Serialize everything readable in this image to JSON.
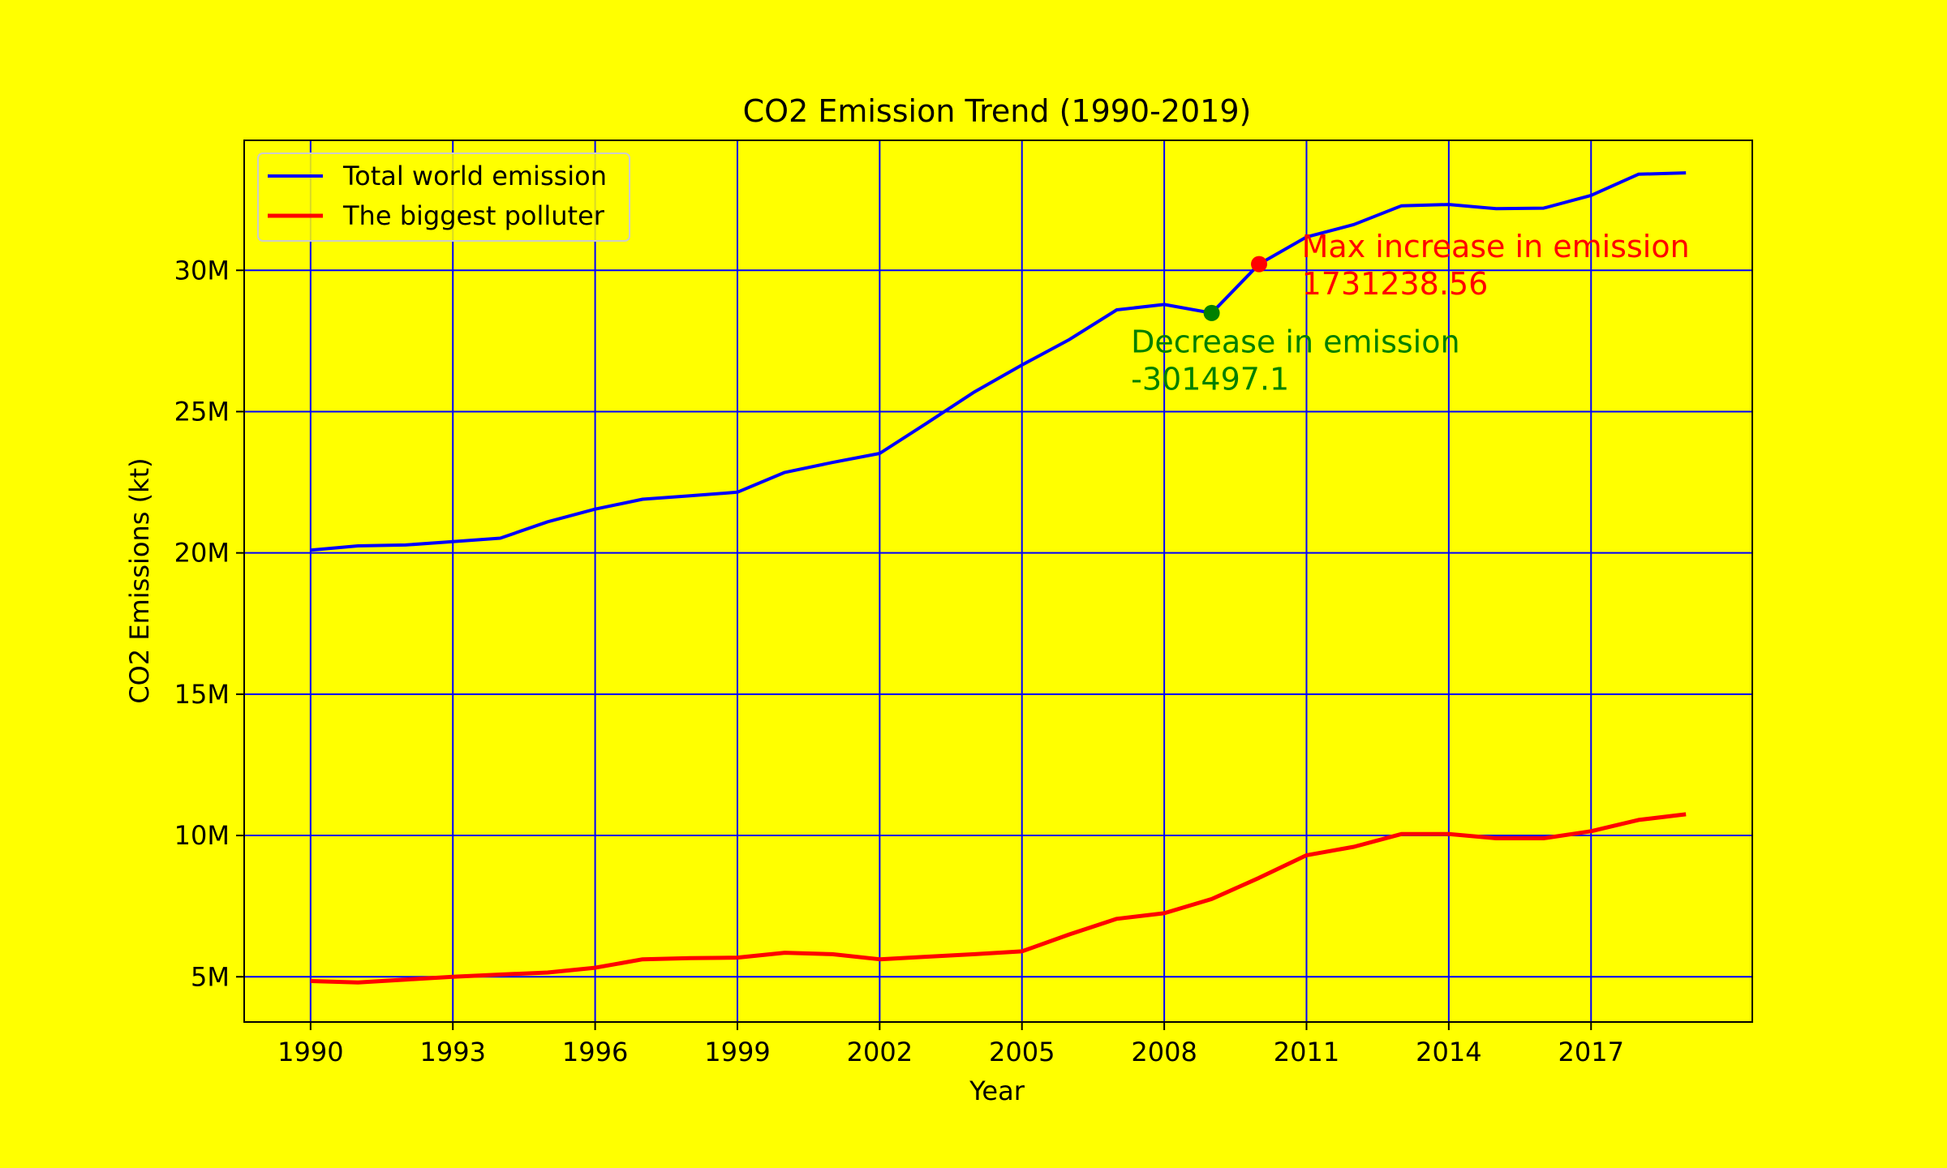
{
  "chart_data": {
    "type": "line",
    "title": "CO2 Emission Trend (1990-2019)",
    "xlabel": "Year",
    "ylabel": "CO2 Emissions (kt)",
    "xlim": [
      1988.6,
      2020.4
    ],
    "ylim": [
      3400000,
      34600000
    ],
    "grid": true,
    "grid_color": "#0000ff",
    "legend_position": "top-left",
    "x_ticks": [
      1990,
      1993,
      1996,
      1999,
      2002,
      2005,
      2008,
      2011,
      2014,
      2017
    ],
    "x_tick_labels": [
      "1990",
      "1993",
      "1996",
      "1999",
      "2002",
      "2005",
      "2008",
      "2011",
      "2014",
      "2017"
    ],
    "y_ticks": [
      5000000,
      10000000,
      15000000,
      20000000,
      25000000,
      30000000
    ],
    "y_tick_labels": [
      "5M",
      "10M",
      "15M",
      "20M",
      "25M",
      "30M"
    ],
    "x": [
      1990,
      1991,
      1992,
      1993,
      1994,
      1995,
      1996,
      1997,
      1998,
      1999,
      2000,
      2001,
      2002,
      2003,
      2004,
      2005,
      2006,
      2007,
      2008,
      2009,
      2010,
      2011,
      2012,
      2013,
      2014,
      2015,
      2016,
      2017,
      2018,
      2019
    ],
    "series": [
      {
        "name": "Total world emission",
        "color": "#0000ff",
        "values": [
          20100000,
          20250000,
          20280000,
          20400000,
          20520000,
          21100000,
          21550000,
          21900000,
          22020000,
          22150000,
          22850000,
          23200000,
          23520000,
          24600000,
          25700000,
          26650000,
          27550000,
          28600000,
          28790000,
          28490000,
          30220000,
          31180000,
          31620000,
          32280000,
          32330000,
          32180000,
          32200000,
          32650000,
          33400000,
          33450000
        ]
      },
      {
        "name": "The biggest polluter",
        "color": "#ff0000",
        "values": [
          4850000,
          4800000,
          4900000,
          5000000,
          5080000,
          5150000,
          5320000,
          5620000,
          5660000,
          5680000,
          5850000,
          5800000,
          5620000,
          5710000,
          5800000,
          5900000,
          6500000,
          7050000,
          7250000,
          7750000,
          8500000,
          9300000,
          9600000,
          10050000,
          10050000,
          9900000,
          9900000,
          10150000,
          10550000,
          10750000
        ]
      }
    ],
    "annotations": [
      {
        "label": "Max increase in emission",
        "value": "1731238.56",
        "point_x": 2010,
        "point_y": 30220000,
        "text_x": 2010.9,
        "text_y": 30460000,
        "color": "#ff0000"
      },
      {
        "label": "Decrease in emission",
        "value": "-301497.1",
        "point_x": 2009,
        "point_y": 28490000,
        "text_x": 2007.3,
        "text_y": 27100000,
        "marker_color": "#008000",
        "color": "#008000"
      }
    ]
  }
}
